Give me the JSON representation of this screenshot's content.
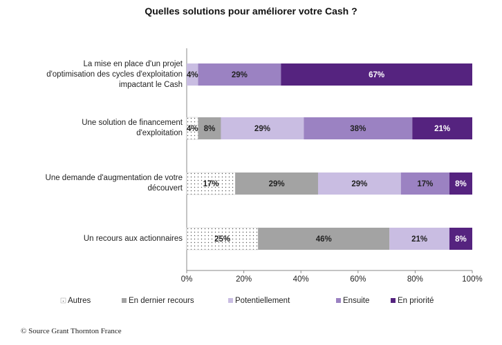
{
  "chart_data": {
    "type": "stacked-barh",
    "title": "Quelles solutions pour améliorer votre Cash ?",
    "categories": [
      "La mise en place d'un projet\nd'optimisation des cycles d'exploitation\nimpactant le Cash",
      "Une solution de financement\nd'exploitation",
      "Une demande d'augmentation de votre\ndécouvert",
      "Un recours aux actionnaires"
    ],
    "series": [
      {
        "name": "Autres",
        "color": "#ffffff",
        "values": [
          null,
          4,
          17,
          25
        ],
        "value_labels": [
          null,
          "4%",
          "17%",
          "25%"
        ]
      },
      {
        "name": "En dernier recours",
        "color": "#a3a3a3",
        "values": [
          null,
          8,
          29,
          46
        ],
        "value_labels": [
          null,
          "8%",
          "29%",
          "46%"
        ]
      },
      {
        "name": "Potentiellement",
        "color": "#c9bde2",
        "values": [
          4,
          29,
          29,
          21
        ],
        "value_labels": [
          "4%",
          "29%",
          "29%",
          "21%"
        ]
      },
      {
        "name": "Ensuite",
        "color": "#9b82c2",
        "values": [
          29,
          38,
          17,
          null
        ],
        "value_labels": [
          "29%",
          "38%",
          "17%",
          null
        ]
      },
      {
        "name": "En priorité",
        "color": "#55237f",
        "values": [
          67,
          21,
          8,
          8
        ],
        "value_labels": [
          "67%",
          "21%",
          "8%",
          "8%"
        ]
      }
    ],
    "xlim": [
      0,
      100
    ],
    "xticks": [
      {
        "value": 0,
        "label": "0%"
      },
      {
        "value": 20,
        "label": "20%"
      },
      {
        "value": 40,
        "label": "40%"
      },
      {
        "value": 60,
        "label": "60%"
      },
      {
        "value": 80,
        "label": "80%"
      },
      {
        "value": 100,
        "label": "100%"
      }
    ],
    "source": "© Source Grant Thornton France"
  }
}
